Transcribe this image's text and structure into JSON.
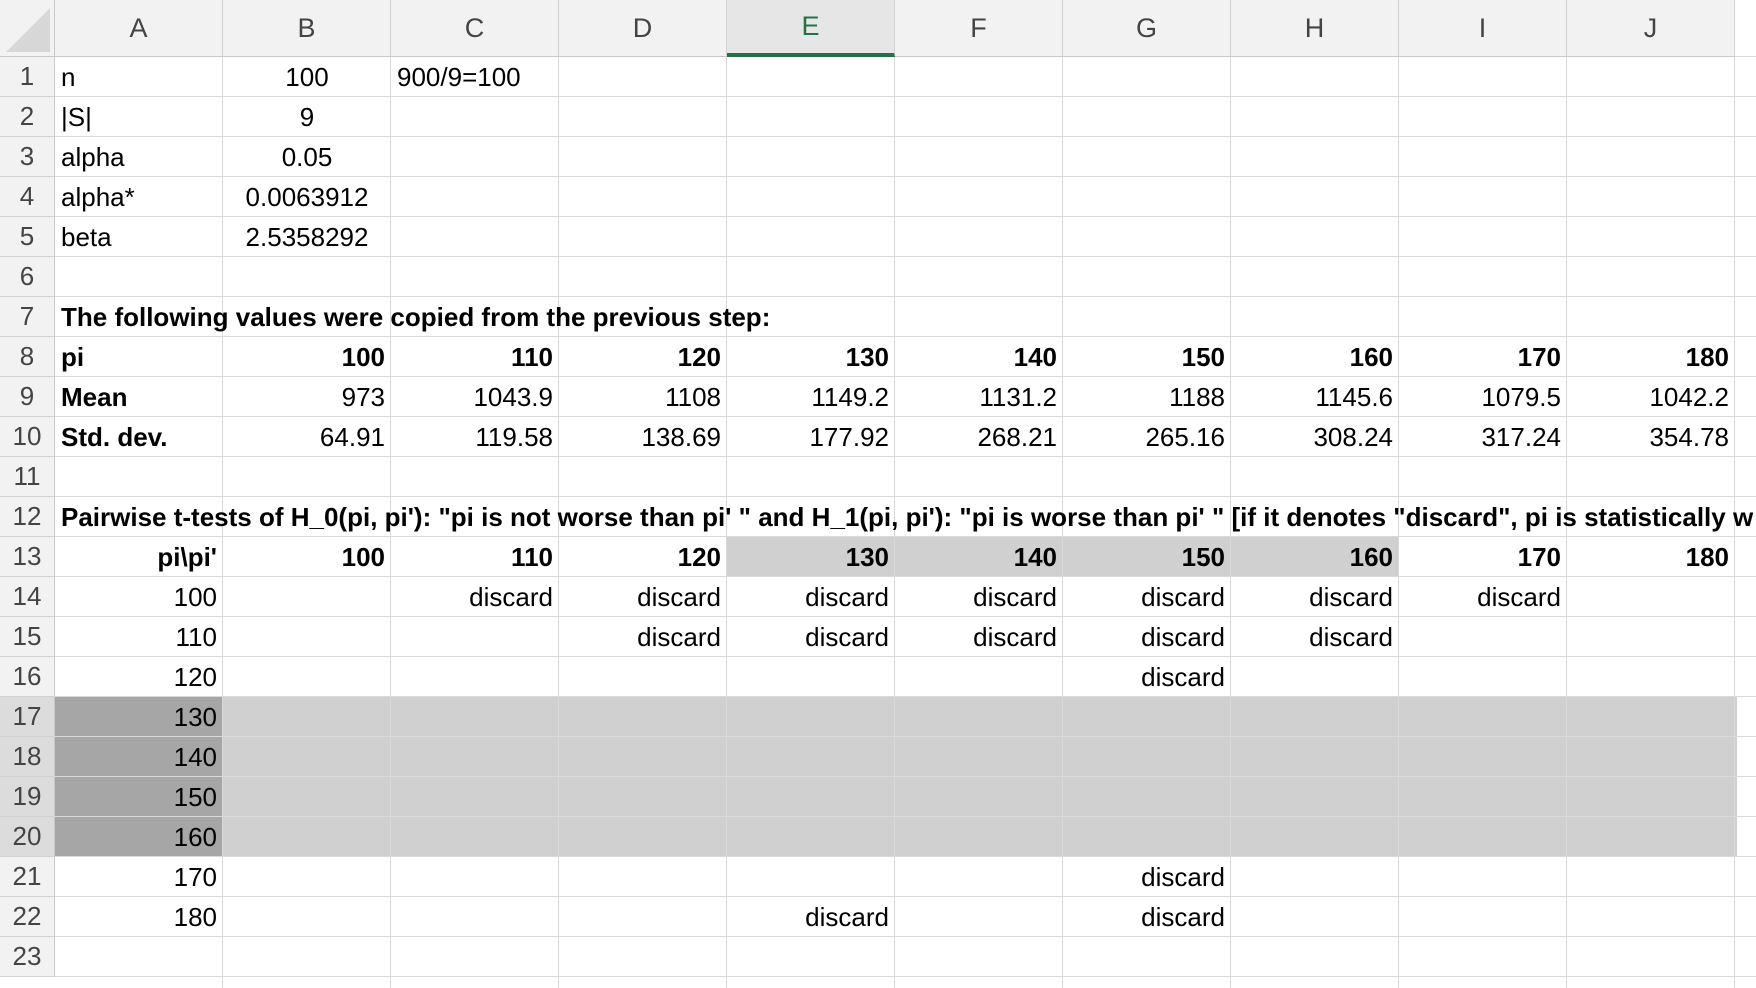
{
  "columns": [
    "A",
    "B",
    "C",
    "D",
    "E",
    "F",
    "G",
    "H",
    "I",
    "J"
  ],
  "selected_column": "E",
  "rows": [
    "1",
    "2",
    "3",
    "4",
    "5",
    "6",
    "7",
    "8",
    "9",
    "10",
    "11",
    "12",
    "13",
    "14",
    "15",
    "16",
    "17",
    "18",
    "19",
    "20",
    "21",
    "22",
    "23"
  ],
  "selected_rows": [
    "17",
    "18",
    "19",
    "20"
  ],
  "colors": {
    "selection_gray": "#d0d0d0",
    "selection_dark": "#a6a6a6",
    "header_accent": "#217346"
  },
  "cells": [
    {
      "ref": "A1",
      "value": "n",
      "align": "left",
      "bold": false
    },
    {
      "ref": "B1",
      "value": "100",
      "align": "center",
      "bold": false
    },
    {
      "ref": "C1",
      "value": "900/9=100",
      "align": "left",
      "bold": false
    },
    {
      "ref": "A2",
      "value": "|S|",
      "align": "left",
      "bold": false
    },
    {
      "ref": "B2",
      "value": "9",
      "align": "center",
      "bold": false
    },
    {
      "ref": "A3",
      "value": "alpha",
      "align": "left",
      "bold": false
    },
    {
      "ref": "B3",
      "value": "0.05",
      "align": "center",
      "bold": false
    },
    {
      "ref": "A4",
      "value": "alpha*",
      "align": "left",
      "bold": false
    },
    {
      "ref": "B4",
      "value": "0.0063912",
      "align": "center",
      "bold": false
    },
    {
      "ref": "A5",
      "value": "beta",
      "align": "left",
      "bold": false
    },
    {
      "ref": "B5",
      "value": "2.5358292",
      "align": "center",
      "bold": false
    },
    {
      "ref": "A7",
      "value": "The following values were copied from the previous step:",
      "align": "left",
      "bold": true
    },
    {
      "ref": "A8",
      "value": "pi",
      "align": "left",
      "bold": true
    },
    {
      "ref": "B8",
      "value": "100",
      "align": "right",
      "bold": true
    },
    {
      "ref": "C8",
      "value": "110",
      "align": "right",
      "bold": true
    },
    {
      "ref": "D8",
      "value": "120",
      "align": "right",
      "bold": true
    },
    {
      "ref": "E8",
      "value": "130",
      "align": "right",
      "bold": true
    },
    {
      "ref": "F8",
      "value": "140",
      "align": "right",
      "bold": true
    },
    {
      "ref": "G8",
      "value": "150",
      "align": "right",
      "bold": true
    },
    {
      "ref": "H8",
      "value": "160",
      "align": "right",
      "bold": true
    },
    {
      "ref": "I8",
      "value": "170",
      "align": "right",
      "bold": true
    },
    {
      "ref": "J8",
      "value": "180",
      "align": "right",
      "bold": true
    },
    {
      "ref": "A9",
      "value": "Mean",
      "align": "left",
      "bold": true
    },
    {
      "ref": "B9",
      "value": "973",
      "align": "right",
      "bold": false
    },
    {
      "ref": "C9",
      "value": "1043.9",
      "align": "right",
      "bold": false
    },
    {
      "ref": "D9",
      "value": "1108",
      "align": "right",
      "bold": false
    },
    {
      "ref": "E9",
      "value": "1149.2",
      "align": "right",
      "bold": false
    },
    {
      "ref": "F9",
      "value": "1131.2",
      "align": "right",
      "bold": false
    },
    {
      "ref": "G9",
      "value": "1188",
      "align": "right",
      "bold": false
    },
    {
      "ref": "H9",
      "value": "1145.6",
      "align": "right",
      "bold": false
    },
    {
      "ref": "I9",
      "value": "1079.5",
      "align": "right",
      "bold": false
    },
    {
      "ref": "J9",
      "value": "1042.2",
      "align": "right",
      "bold": false
    },
    {
      "ref": "A10",
      "value": "Std. dev.",
      "align": "left",
      "bold": true
    },
    {
      "ref": "B10",
      "value": "64.91",
      "align": "right",
      "bold": false
    },
    {
      "ref": "C10",
      "value": "119.58",
      "align": "right",
      "bold": false
    },
    {
      "ref": "D10",
      "value": "138.69",
      "align": "right",
      "bold": false
    },
    {
      "ref": "E10",
      "value": "177.92",
      "align": "right",
      "bold": false
    },
    {
      "ref": "F10",
      "value": "268.21",
      "align": "right",
      "bold": false
    },
    {
      "ref": "G10",
      "value": "265.16",
      "align": "right",
      "bold": false
    },
    {
      "ref": "H10",
      "value": "308.24",
      "align": "right",
      "bold": false
    },
    {
      "ref": "I10",
      "value": "317.24",
      "align": "right",
      "bold": false
    },
    {
      "ref": "J10",
      "value": "354.78",
      "align": "right",
      "bold": false
    },
    {
      "ref": "A12",
      "value": "Pairwise t-tests of H_0(pi, pi'): \"pi is not worse than pi' \" and H_1(pi, pi'): \"pi is worse than pi' \" [if it denotes \"discard\", pi is statistically w",
      "align": "left",
      "bold": true
    },
    {
      "ref": "A13",
      "value": "pi\\pi'",
      "align": "right",
      "bold": true
    },
    {
      "ref": "B13",
      "value": "100",
      "align": "right",
      "bold": true
    },
    {
      "ref": "C13",
      "value": "110",
      "align": "right",
      "bold": true
    },
    {
      "ref": "D13",
      "value": "120",
      "align": "right",
      "bold": true
    },
    {
      "ref": "E13",
      "value": "130",
      "align": "right",
      "bold": true
    },
    {
      "ref": "F13",
      "value": "140",
      "align": "right",
      "bold": true
    },
    {
      "ref": "G13",
      "value": "150",
      "align": "right",
      "bold": true
    },
    {
      "ref": "H13",
      "value": "160",
      "align": "right",
      "bold": true
    },
    {
      "ref": "I13",
      "value": "170",
      "align": "right",
      "bold": true
    },
    {
      "ref": "J13",
      "value": "180",
      "align": "right",
      "bold": true
    },
    {
      "ref": "A14",
      "value": "100",
      "align": "right",
      "bold": false
    },
    {
      "ref": "C14",
      "value": "discard",
      "align": "right",
      "bold": false
    },
    {
      "ref": "D14",
      "value": "discard",
      "align": "right",
      "bold": false
    },
    {
      "ref": "E14",
      "value": "discard",
      "align": "right",
      "bold": false
    },
    {
      "ref": "F14",
      "value": "discard",
      "align": "right",
      "bold": false
    },
    {
      "ref": "G14",
      "value": "discard",
      "align": "right",
      "bold": false
    },
    {
      "ref": "H14",
      "value": "discard",
      "align": "right",
      "bold": false
    },
    {
      "ref": "I14",
      "value": "discard",
      "align": "right",
      "bold": false
    },
    {
      "ref": "A15",
      "value": "110",
      "align": "right",
      "bold": false
    },
    {
      "ref": "D15",
      "value": "discard",
      "align": "right",
      "bold": false
    },
    {
      "ref": "E15",
      "value": "discard",
      "align": "right",
      "bold": false
    },
    {
      "ref": "F15",
      "value": "discard",
      "align": "right",
      "bold": false
    },
    {
      "ref": "G15",
      "value": "discard",
      "align": "right",
      "bold": false
    },
    {
      "ref": "H15",
      "value": "discard",
      "align": "right",
      "bold": false
    },
    {
      "ref": "A16",
      "value": "120",
      "align": "right",
      "bold": false
    },
    {
      "ref": "G16",
      "value": "discard",
      "align": "right",
      "bold": false
    },
    {
      "ref": "A17",
      "value": "130",
      "align": "right",
      "bold": false
    },
    {
      "ref": "A18",
      "value": "140",
      "align": "right",
      "bold": false
    },
    {
      "ref": "A19",
      "value": "150",
      "align": "right",
      "bold": false
    },
    {
      "ref": "A20",
      "value": "160",
      "align": "right",
      "bold": false
    },
    {
      "ref": "A21",
      "value": "170",
      "align": "right",
      "bold": false
    },
    {
      "ref": "G21",
      "value": "discard",
      "align": "right",
      "bold": false
    },
    {
      "ref": "A22",
      "value": "180",
      "align": "right",
      "bold": false
    },
    {
      "ref": "E22",
      "value": "discard",
      "align": "right",
      "bold": false
    },
    {
      "ref": "G22",
      "value": "discard",
      "align": "right",
      "bold": false
    }
  ]
}
